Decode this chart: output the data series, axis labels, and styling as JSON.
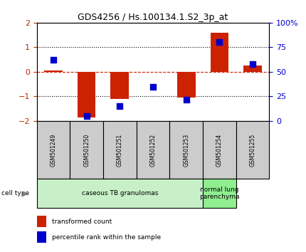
{
  "title": "GDS4256 / Hs.100134.1.S2_3p_at",
  "samples": [
    "GSM501249",
    "GSM501250",
    "GSM501251",
    "GSM501252",
    "GSM501253",
    "GSM501254",
    "GSM501255"
  ],
  "red_values": [
    0.05,
    -1.85,
    -1.1,
    0.0,
    -1.05,
    1.6,
    0.25
  ],
  "blue_values_pct": [
    62,
    5,
    15,
    35,
    22,
    80,
    58
  ],
  "ylim": [
    -2.0,
    2.0
  ],
  "y_left_ticks": [
    -2,
    -1,
    0,
    1,
    2
  ],
  "y_right_ticks": [
    0,
    25,
    50,
    75,
    100
  ],
  "hlines_black": [
    1.0,
    -1.0
  ],
  "hline_red": 0.0,
  "cell_groups": [
    {
      "label": "caseous TB granulomas",
      "start": 0,
      "end": 5,
      "color": "#c8f0c8"
    },
    {
      "label": "normal lung\nparenchyma",
      "start": 5,
      "end": 6,
      "color": "#90ee90"
    }
  ],
  "bar_color": "#cc2200",
  "dot_color": "#0000cc",
  "bar_width": 0.55,
  "dot_size": 28,
  "legend_red": "transformed count",
  "legend_blue": "percentile rank within the sample",
  "tick_label_color_left": "#cc2200",
  "tick_label_color_right": "#0000cc",
  "cell_type_label": "cell type",
  "sample_box_color": "#cccccc",
  "spine_color": "#000000"
}
